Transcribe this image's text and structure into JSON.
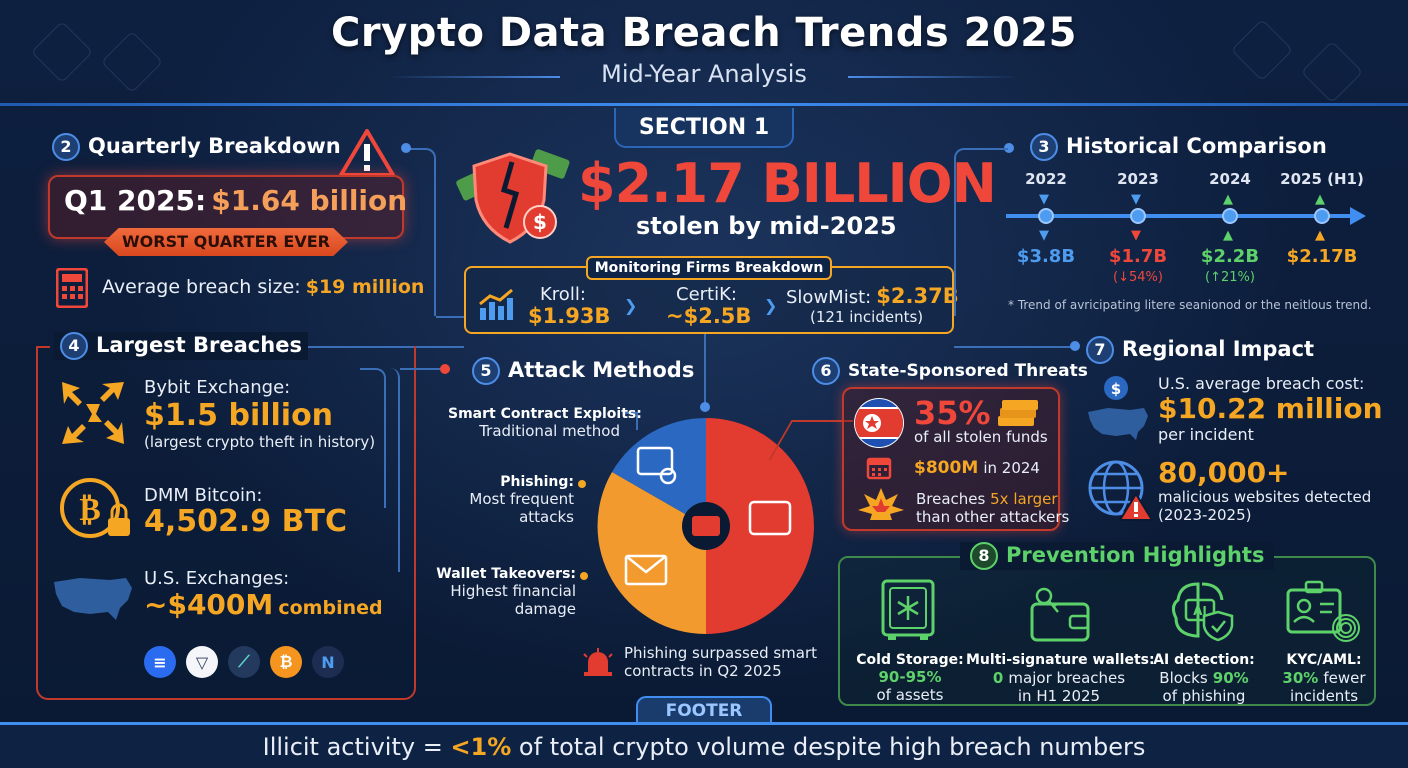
{
  "header": {
    "title": "Crypto Data Breach Trends 2025",
    "subtitle": "Mid-Year Analysis",
    "section_tab": "SECTION 1"
  },
  "hero": {
    "amount": "$2.17 BILLION",
    "caption": "stolen by mid-2025",
    "monitoring": {
      "title": "Monitoring Firms Breakdown",
      "firms": [
        {
          "name": "Kroll:",
          "value": "$1.93B"
        },
        {
          "name": "CertiK:",
          "value": "~$2.5B"
        },
        {
          "name": "SlowMist:",
          "value": "$2.37B",
          "note": "(121 incidents)"
        }
      ]
    }
  },
  "quarterly": {
    "num": "2",
    "heading": "Quarterly Breakdown",
    "q1_label": "Q1 2025:",
    "q1_value": "$1.64 billion",
    "badge": "WORST QUARTER EVER",
    "avg_label": "Average breach size:",
    "avg_value": "$19 million"
  },
  "largest": {
    "num": "4",
    "heading": "Largest Breaches",
    "items": [
      {
        "name": "Bybit Exchange:",
        "value": "$1.5 billion",
        "note": "(largest crypto theft in history)"
      },
      {
        "name": "DMM Bitcoin:",
        "value": "4,502.9 BTC"
      },
      {
        "name": "U.S. Exchanges:",
        "value": "~$400M",
        "value_suffix": "combined"
      }
    ]
  },
  "historical": {
    "num": "3",
    "heading": "Historical Comparison",
    "points": [
      {
        "year": "2022",
        "value": "$3.8B",
        "change": "",
        "color": "#4d9cf0",
        "arrow": "down"
      },
      {
        "year": "2023",
        "value": "$1.7B",
        "change": "(↓54%)",
        "color": "#f0473b",
        "arrow": "down"
      },
      {
        "year": "2024",
        "value": "$2.2B",
        "change": "(↑21%)",
        "color": "#5dd16a",
        "arrow": "up"
      },
      {
        "year": "2025 (H1)",
        "value": "$2.17B",
        "change": "",
        "color": "#f5a623",
        "arrow": "up"
      }
    ],
    "footnote": "* Trend of avricipating litere seanionod or the neitlous trend."
  },
  "attack": {
    "num": "5",
    "heading": "Attack Methods",
    "labels": [
      {
        "title": "Smart Contract Exploits:",
        "desc": "Traditional method"
      },
      {
        "title": "Phishing:",
        "desc1": "Most frequent",
        "desc2": "attacks"
      },
      {
        "title": "Wallet Takeovers:",
        "desc1": "Highest financial",
        "desc2": "damage"
      }
    ],
    "note1": "Phishing surpassed smart",
    "note2": "contracts in Q2 2025"
  },
  "state": {
    "num": "6",
    "heading": "State-Sponsored Threats",
    "pct": "35%",
    "pct_desc": "of all stolen funds",
    "amount": "$800M",
    "amount_suffix": "in 2024",
    "breach_pre": "Breaches",
    "breach_mult": "5x larger",
    "breach_post": "than other attackers"
  },
  "regional": {
    "num": "7",
    "heading": "Regional Impact",
    "cost_label": "U.S. average breach cost:",
    "cost_value": "$10.22 million",
    "cost_suffix": "per incident",
    "sites_value": "80,000+",
    "sites_desc1": "malicious websites detected",
    "sites_desc2": "(2023-2025)"
  },
  "prevention": {
    "num": "8",
    "heading": "Prevention Highlights",
    "items": [
      {
        "title": "Cold Storage:",
        "hl": "90-95%",
        "rest": "of assets"
      },
      {
        "title": "Multi-signature wallets:",
        "hl": "0",
        "rest1": "major breaches",
        "rest2": "in H1 2025"
      },
      {
        "title": "AI detection:",
        "pre": "Blocks",
        "hl": "90%",
        "rest": "of phishing"
      },
      {
        "title": "KYC/AML:",
        "hl": "30%",
        "rest1": "fewer",
        "rest2": "incidents"
      }
    ]
  },
  "footer": {
    "tab": "FOOTER",
    "pre": "Illicit activity = ",
    "hl": "<1%",
    "post": " of total crypto volume despite high breach numbers"
  },
  "colors": {
    "accent": "#3f8ef0",
    "red": "#f0473b",
    "orange": "#f5a623",
    "green": "#5dd16a"
  }
}
